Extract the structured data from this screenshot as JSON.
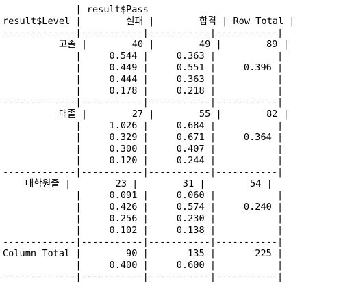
{
  "crosstab": {
    "lines": [
      "             | result$Pass",
      "result$Level |        실패 |        합격 | Row Total |",
      "-------------|-----------|-----------|-----------|",
      "          고졸 |        40 |        49 |        89 |",
      "             |     0.544 |     0.363 |           |",
      "             |     0.449 |     0.551 |     0.396 |",
      "             |     0.444 |     0.363 |           |",
      "             |     0.178 |     0.218 |           |",
      "-------------|-----------|-----------|-----------|",
      "          대졸 |        27 |        55 |        82 |",
      "             |     1.026 |     0.684 |           |",
      "             |     0.329 |     0.671 |     0.364 |",
      "             |     0.300 |     0.407 |           |",
      "             |     0.120 |     0.244 |           |",
      "-------------|-----------|-----------|-----------|",
      "    대학원졸 |        23 |        31 |        54 |",
      "             |     0.091 |     0.060 |           |",
      "             |     0.426 |     0.574 |     0.240 |",
      "             |     0.256 |     0.230 |           |",
      "             |     0.102 |     0.138 |           |",
      "-------------|-----------|-----------|-----------|",
      "Column Total |        90 |       135 |       225 |",
      "             |     0.400 |     0.600 |           |",
      "-------------|-----------|-----------|-----------|"
    ]
  }
}
